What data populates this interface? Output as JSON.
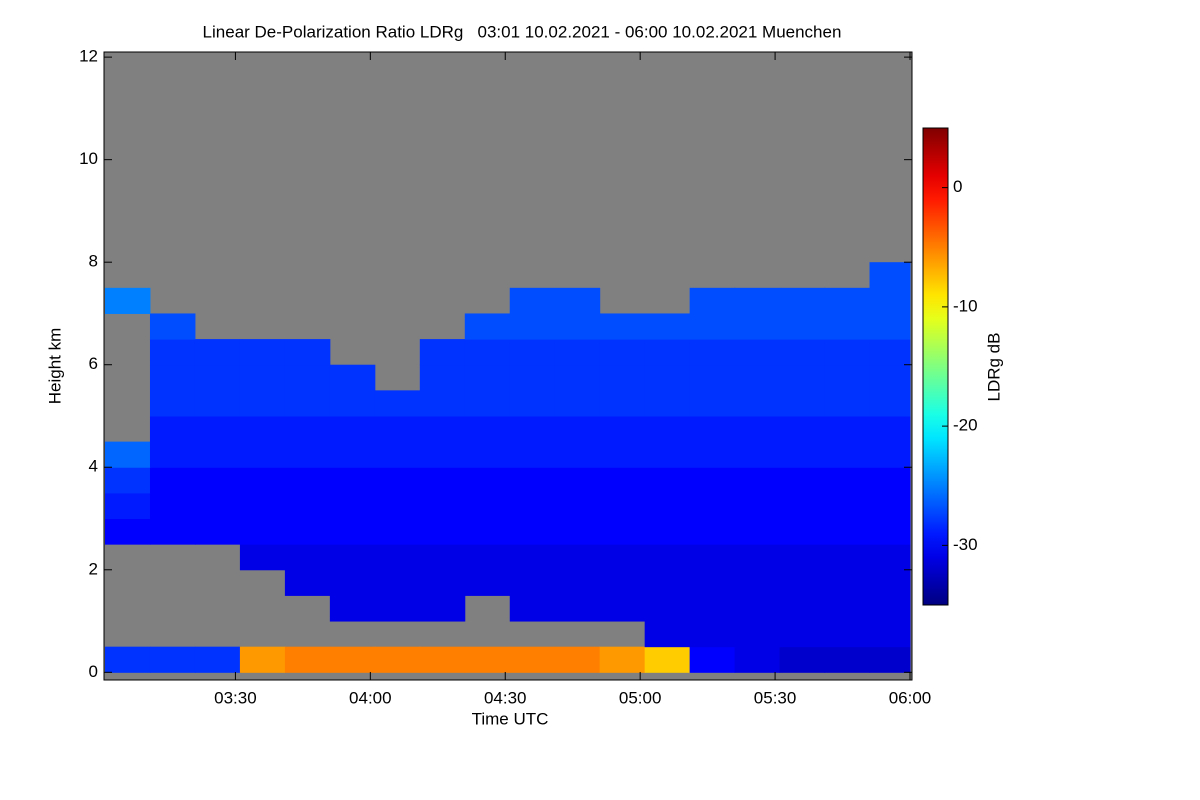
{
  "chart_data": {
    "type": "heatmap",
    "title": "Linear De-Polarization Ratio LDRg   03:01 10.02.2021 - 06:00 10.02.2021 Muenchen",
    "x_label": "Time UTC",
    "y_label": "Height km",
    "colorbar_label": "LDRg dB",
    "xlim": [
      "03:01",
      "06:00"
    ],
    "xticks": [
      "03:30",
      "04:00",
      "04:30",
      "05:00",
      "05:30",
      "06:00"
    ],
    "ylim": [
      -0.15,
      12.1
    ],
    "yticks": [
      0,
      2,
      4,
      6,
      8,
      10,
      12
    ],
    "zlim": [
      -35,
      5
    ],
    "zticks": [
      0,
      -10,
      -20,
      -30
    ],
    "colormap": "jet",
    "background": "#808080",
    "x": [
      "03:01",
      "03:11",
      "03:21",
      "03:31",
      "03:41",
      "03:51",
      "04:01",
      "04:11",
      "04:21",
      "04:31",
      "04:41",
      "04:51",
      "05:01",
      "05:11",
      "05:21",
      "05:31",
      "05:41",
      "05:51"
    ],
    "y": [
      0,
      0.5,
      1,
      1.5,
      2,
      2.5,
      3,
      3.5,
      4,
      4.5,
      5,
      5.5,
      6,
      6.5,
      7,
      7.5,
      8,
      8.5,
      9,
      9.5,
      10,
      10.5,
      11,
      11.5
    ],
    "z": [
      [
        -28,
        -28,
        -28,
        -6,
        -5,
        -5,
        -5,
        -5,
        -5,
        -5,
        -5,
        -6,
        -8,
        -30,
        -31,
        -32,
        -32,
        -32
      ],
      [
        null,
        null,
        null,
        null,
        null,
        null,
        null,
        null,
        null,
        null,
        null,
        null,
        -31,
        -31,
        -31,
        -31,
        -31,
        -31
      ],
      [
        null,
        null,
        null,
        null,
        null,
        -31,
        -31,
        -31,
        null,
        -31,
        -31,
        -31,
        -31,
        -31,
        -31,
        -31,
        -31,
        -31
      ],
      [
        null,
        null,
        null,
        null,
        -31,
        -31,
        -31,
        -31,
        -31,
        -31,
        -31,
        -31,
        -31,
        -31,
        -31,
        -31,
        -31,
        -31
      ],
      [
        null,
        null,
        null,
        -31,
        -31,
        -31,
        -31,
        -31,
        -31,
        -31,
        -31,
        -31,
        -31,
        -31,
        -31,
        -31,
        -31,
        -31
      ],
      [
        -30,
        -30,
        -30,
        -30,
        -30,
        -30,
        -30,
        -30,
        -30,
        -30,
        -30,
        -30,
        -30,
        -30,
        -30,
        -30,
        -30,
        -30
      ],
      [
        -29,
        -30,
        -30,
        -30,
        -30,
        -30,
        -30,
        -30,
        -30,
        -30,
        -30,
        -30,
        -30,
        -30,
        -30,
        -30,
        -30,
        -30
      ],
      [
        -28,
        -30,
        -30,
        -30,
        -30,
        -30,
        -30,
        -30,
        -30,
        -30,
        -30,
        -30,
        -30,
        -30,
        -30,
        -30,
        -30,
        -30
      ],
      [
        -26,
        -29,
        -29,
        -29,
        -29,
        -29,
        -29,
        -29,
        -29,
        -29,
        -29,
        -29,
        -29,
        -29,
        -29,
        -29,
        -29,
        -29
      ],
      [
        null,
        -29,
        -29,
        -29,
        -29,
        -29,
        -29,
        -29,
        -29,
        -29,
        -29,
        -29,
        -29,
        -29,
        -29,
        -29,
        -29,
        -29
      ],
      [
        null,
        -28,
        -28,
        -28,
        -28,
        -28,
        -28,
        -28,
        -28,
        -28,
        -28,
        -28,
        -28,
        -28,
        -28,
        -28,
        -28,
        -28
      ],
      [
        null,
        -28,
        -28,
        -28,
        -28,
        -28,
        null,
        -28,
        -28,
        -28,
        -28,
        -28,
        -28,
        -28,
        -28,
        -28,
        -28,
        -28
      ],
      [
        null,
        -28,
        -28,
        -28,
        -28,
        null,
        null,
        -28,
        -28,
        -28,
        -28,
        -28,
        -28,
        -28,
        -28,
        -28,
        -28,
        -28
      ],
      [
        null,
        -27,
        null,
        null,
        null,
        null,
        null,
        null,
        -27,
        -27,
        -27,
        -27,
        -27,
        -27,
        -27,
        -27,
        -27,
        -27
      ],
      [
        -25,
        null,
        null,
        null,
        null,
        null,
        null,
        null,
        null,
        -27,
        -27,
        null,
        null,
        -27,
        -27,
        -27,
        -27,
        -27
      ],
      [
        null,
        null,
        null,
        null,
        null,
        null,
        null,
        null,
        null,
        null,
        null,
        null,
        null,
        null,
        null,
        null,
        null,
        -27
      ],
      [
        null,
        null,
        null,
        null,
        null,
        null,
        null,
        null,
        null,
        null,
        null,
        null,
        null,
        null,
        null,
        null,
        null,
        null
      ],
      [
        null,
        null,
        null,
        null,
        null,
        null,
        null,
        null,
        null,
        null,
        null,
        null,
        null,
        null,
        null,
        null,
        null,
        null
      ],
      [
        null,
        null,
        null,
        null,
        null,
        null,
        null,
        null,
        null,
        null,
        null,
        null,
        null,
        null,
        null,
        null,
        null,
        null
      ],
      [
        null,
        null,
        null,
        null,
        null,
        null,
        null,
        null,
        null,
        null,
        null,
        null,
        null,
        null,
        null,
        null,
        null,
        null
      ],
      [
        null,
        null,
        null,
        null,
        null,
        null,
        null,
        null,
        null,
        null,
        null,
        null,
        null,
        null,
        null,
        null,
        null,
        null
      ],
      [
        null,
        null,
        null,
        null,
        null,
        null,
        null,
        null,
        null,
        null,
        null,
        null,
        null,
        null,
        null,
        null,
        null,
        null
      ],
      [
        null,
        null,
        null,
        null,
        null,
        null,
        null,
        null,
        null,
        null,
        null,
        null,
        null,
        null,
        null,
        null,
        null,
        null
      ],
      [
        null,
        null,
        null,
        null,
        null,
        null,
        null,
        null,
        null,
        null,
        null,
        null,
        null,
        null,
        null,
        null,
        null,
        null
      ]
    ]
  }
}
